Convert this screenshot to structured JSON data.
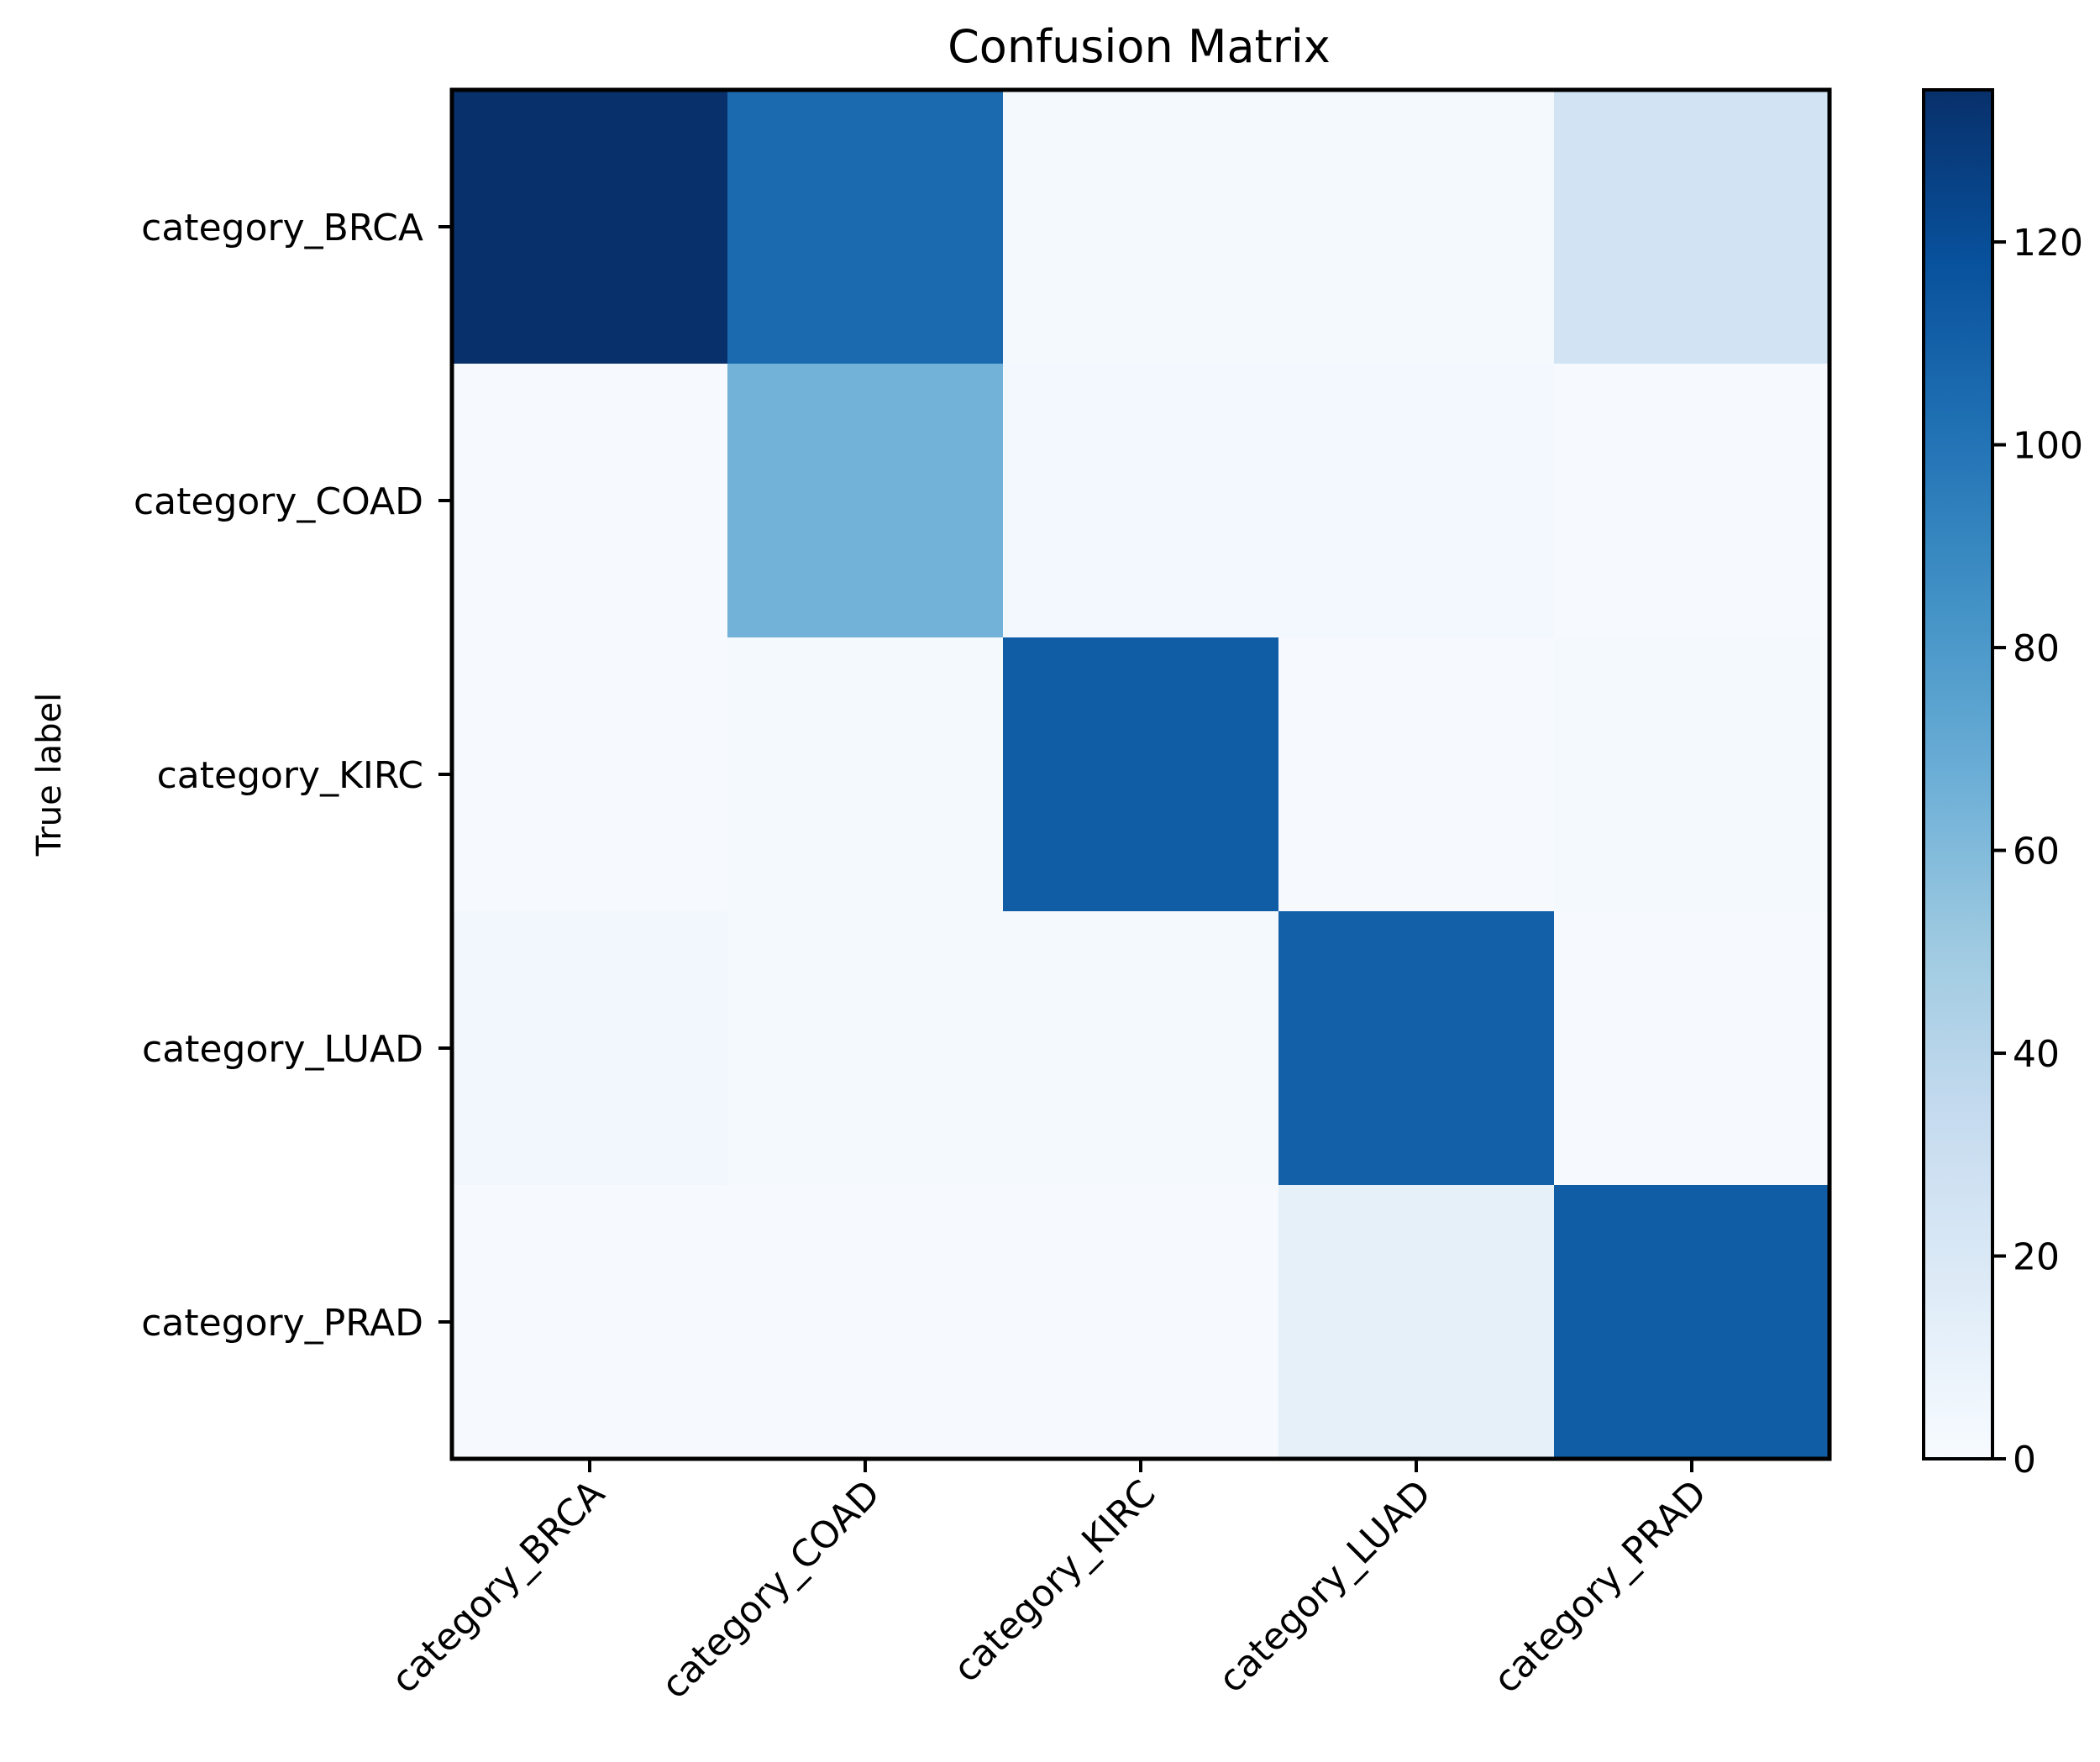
{
  "chart_data": {
    "type": "heatmap",
    "title": "Confusion Matrix",
    "ylabel": "True label",
    "xlabel": "",
    "row_labels": [
      "category_BRCA",
      "category_COAD",
      "category_KIRC",
      "category_LUAD",
      "category_PRAD"
    ],
    "col_labels": [
      "category_BRCA",
      "category_COAD",
      "category_KIRC",
      "category_LUAD",
      "category_PRAD"
    ],
    "values": [
      [
        135,
        105,
        2,
        2,
        25
      ],
      [
        1,
        65,
        3,
        3,
        1
      ],
      [
        1,
        2,
        112,
        1,
        2
      ],
      [
        4,
        2,
        2,
        110,
        1
      ],
      [
        1,
        1,
        1,
        12,
        112
      ]
    ],
    "colorbar": {
      "range": [
        0,
        135
      ],
      "ticks": [
        0,
        20,
        40,
        60,
        80,
        100,
        120
      ],
      "colormap": "Blues"
    }
  }
}
